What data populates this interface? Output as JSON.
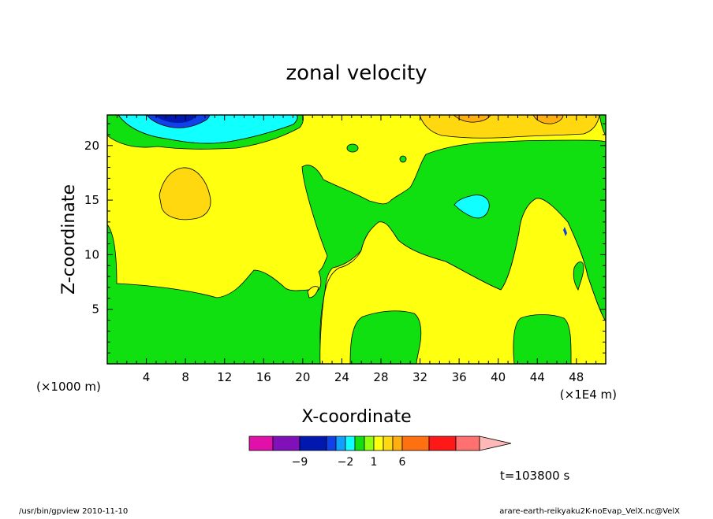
{
  "chart_data": {
    "type": "heatmap",
    "title": "zonal velocity",
    "xlabel": "X-coordinate",
    "ylabel": "Z-coordinate",
    "x_unit_left": "(×1000 m)",
    "x_unit_right": "(×1E4 m)",
    "xlim": [
      0,
      51
    ],
    "ylim": [
      0,
      22.8
    ],
    "x_ticks": [
      4,
      8,
      12,
      16,
      20,
      24,
      28,
      32,
      36,
      40,
      44,
      48
    ],
    "y_ticks": [
      5,
      10,
      15,
      20
    ],
    "time_label": "t=103800 s",
    "colorbar": {
      "colors": [
        "#e010a8",
        "#8010b8",
        "#0018b0",
        "#1040e8",
        "#10a0ff",
        "#10ffff",
        "#10e010",
        "#90ff10",
        "#ffff10",
        "#ffd810",
        "#ffb010",
        "#ff7010",
        "#ff1818",
        "#ff7070",
        "#ffb8b8"
      ],
      "tick_labels": [
        {
          "after": 1,
          "text": "−9"
        },
        {
          "after": 4,
          "text": "−2"
        },
        {
          "after": 7,
          "text": "1"
        },
        {
          "after": 10,
          "text": "6"
        }
      ]
    },
    "regions": [
      {
        "level": "yellow",
        "color": "#ffff10",
        "role": "background"
      },
      {
        "level": "green",
        "color": "#10e010",
        "role": "lower-left and right-center bands"
      },
      {
        "level": "orange-light",
        "color": "#ffd810",
        "role": "patch near x=8, z=16 and top-right"
      },
      {
        "level": "cyan",
        "color": "#10ffff",
        "role": "top-left near surface, patch near x=38, z=14.5"
      },
      {
        "level": "blue",
        "color": "#1040e8",
        "role": "top-left core near x=8"
      },
      {
        "level": "orange",
        "color": "#ffb010",
        "role": "top-right cores"
      }
    ]
  },
  "footer": {
    "left": "/usr/bin/gpview   2010-11-10",
    "right": "arare-earth-reikyaku2K-noEvap_VelX.nc@VelX"
  }
}
